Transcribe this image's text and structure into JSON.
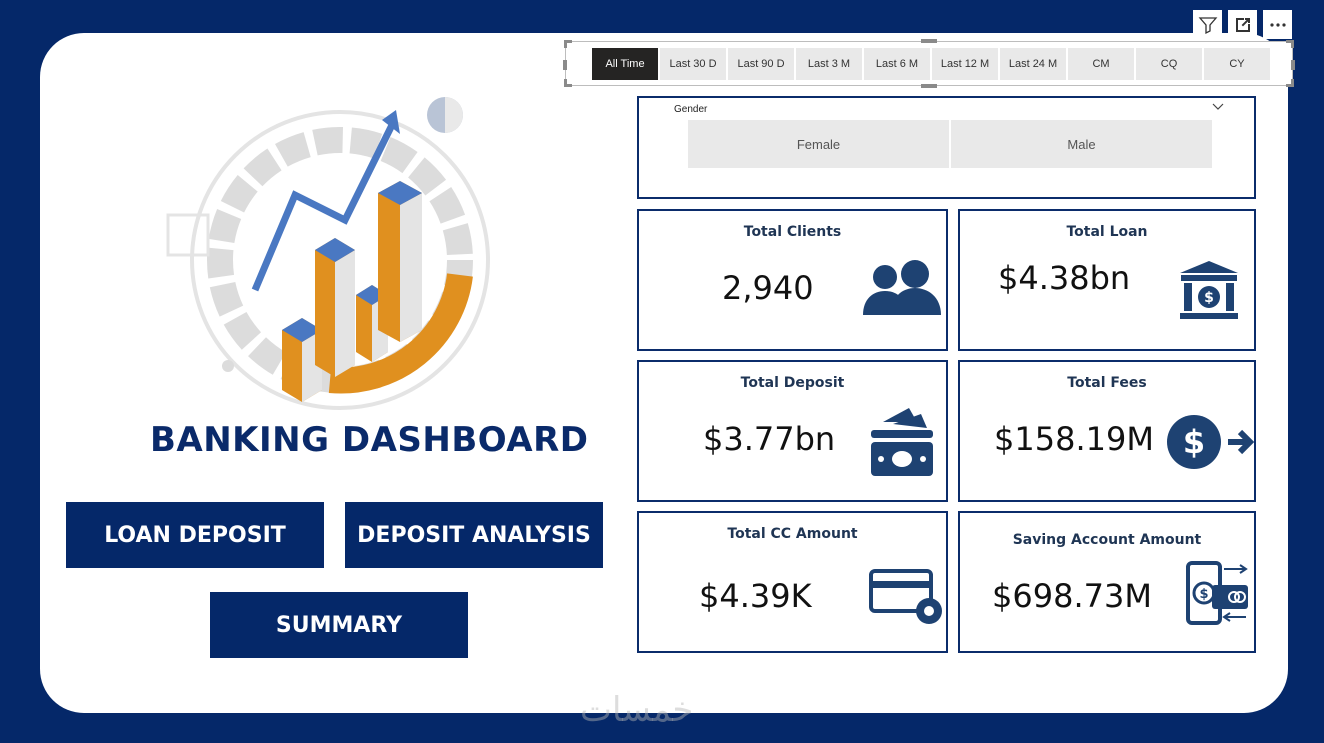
{
  "toolbar": {
    "icons": [
      "filter-icon",
      "focus-mode-icon",
      "more-options-icon"
    ]
  },
  "date_slicer": {
    "options": [
      "All Time",
      "Last 30 D",
      "Last 90 D",
      "Last 3 M",
      "Last 6 M",
      "Last 12 M",
      "Last 24 M",
      "CM",
      "CQ",
      "CY"
    ],
    "selected": "All Time"
  },
  "gender_slicer": {
    "title": "Gender",
    "options": [
      "Female",
      "Male"
    ]
  },
  "dashboard": {
    "title": "BANKING DASHBOARD",
    "nav": {
      "loan_deposit": "LOAN DEPOSIT",
      "deposit_analysis": "DEPOSIT ANALYSIS",
      "summary": "SUMMARY"
    }
  },
  "kpis": {
    "total_clients": {
      "title": "Total Clients",
      "value": "2,940"
    },
    "total_loan": {
      "title": "Total Loan",
      "value": "$4.38bn"
    },
    "total_deposit": {
      "title": "Total Deposit",
      "value": "$3.77bn"
    },
    "total_fees": {
      "title": "Total Fees",
      "value": "$158.19M"
    },
    "total_cc_amount": {
      "title": "Total CC Amount",
      "value": "$4.39K"
    },
    "saving_account_amount": {
      "title": "Saving Account Amount",
      "value": "$698.73M"
    }
  },
  "watermark": "خمسات",
  "colors": {
    "navy": "#052869",
    "card_border": "#0b2c6b",
    "orange": "#e0901f",
    "blue_accent": "#4a78c2",
    "slicer_active": "#252423"
  }
}
